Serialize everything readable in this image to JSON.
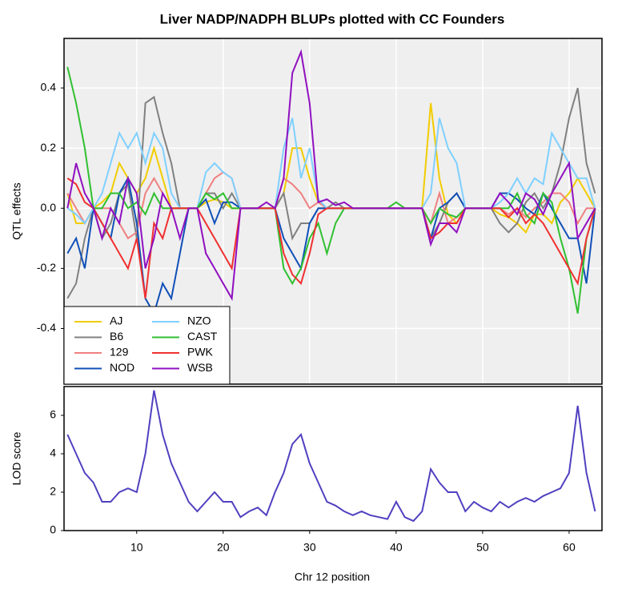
{
  "chart_data": [
    {
      "type": "line",
      "title": "Liver NADP/NADPH BLUPs plotted with CC Founders",
      "ylabel": "QTL effects",
      "x": [
        2,
        3,
        4,
        5,
        6,
        7,
        8,
        9,
        10,
        11,
        12,
        13,
        14,
        15,
        16,
        17,
        18,
        19,
        20,
        21,
        22,
        23,
        24,
        25,
        26,
        27,
        28,
        29,
        30,
        31,
        32,
        33,
        34,
        35,
        36,
        37,
        38,
        39,
        40,
        41,
        42,
        43,
        44,
        45,
        46,
        47,
        48,
        49,
        50,
        51,
        52,
        53,
        54,
        55,
        56,
        57,
        58,
        59,
        60,
        61,
        62,
        63
      ],
      "xlim": [
        1.6,
        63.8
      ],
      "ylim": [
        -0.585,
        0.565
      ],
      "yticks": [
        0.4,
        0.2,
        {
          "value": 0,
          "label": "0.0"
        },
        -0.2,
        -0.4
      ],
      "grid": true,
      "legend": "bottom-left",
      "series": [
        {
          "name": "AJ",
          "color": "#f2cc00",
          "values": [
            0.05,
            -0.05,
            -0.05,
            0,
            0.02,
            0.05,
            0.15,
            0.1,
            0.05,
            0.1,
            0.2,
            0.1,
            0,
            0,
            0,
            0,
            0.02,
            0.03,
            0.02,
            0,
            0,
            0,
            0,
            0,
            0,
            0.05,
            0.2,
            0.2,
            0.1,
            0.02,
            0,
            0,
            0,
            0,
            0,
            0,
            0,
            0,
            0,
            0,
            0,
            0,
            0.35,
            0.1,
            -0.02,
            -0.05,
            0,
            0,
            0,
            0,
            -0.02,
            -0.03,
            -0.05,
            -0.08,
            -0.02,
            -0.02,
            -0.05,
            0.02,
            0.05,
            0.1,
            0.05,
            0
          ]
        },
        {
          "name": "B6",
          "color": "#808080",
          "values": [
            -0.3,
            -0.25,
            -0.1,
            0,
            -0.1,
            -0.05,
            0.05,
            0.08,
            -0.1,
            0.35,
            0.37,
            0.25,
            0.15,
            0,
            0,
            0,
            0.05,
            0.05,
            0,
            0.05,
            0,
            0,
            0,
            0,
            0,
            0.05,
            -0.1,
            -0.05,
            -0.05,
            0,
            0,
            0.02,
            0,
            0,
            0,
            0,
            0,
            0,
            0,
            0,
            0,
            0,
            -0.1,
            -0.05,
            0.02,
            0.05,
            0,
            0,
            0,
            0,
            -0.05,
            -0.08,
            -0.05,
            0.02,
            0.05,
            0,
            0.05,
            0.15,
            0.3,
            0.4,
            0.15,
            0.05
          ]
        },
        {
          "name": "129",
          "color": "#f08080",
          "values": [
            0.05,
            0,
            -0.05,
            0,
            0,
            0,
            -0.05,
            -0.1,
            -0.08,
            0.05,
            0.1,
            0.05,
            0,
            0,
            0,
            0,
            0.05,
            0.1,
            0.12,
            0.1,
            0,
            0,
            0,
            0,
            0,
            0.1,
            0.08,
            0.05,
            0,
            0.02,
            0,
            0,
            0,
            0,
            0,
            0,
            0,
            0,
            0,
            0,
            0,
            0,
            -0.05,
            0.05,
            -0.05,
            -0.03,
            0,
            0,
            0,
            0,
            0,
            -0.02,
            0,
            -0.03,
            0,
            0.02,
            0.05,
            0.05,
            0.02,
            -0.05,
            0,
            0
          ]
        },
        {
          "name": "NOD",
          "color": "#1050b8",
          "values": [
            -0.15,
            -0.1,
            -0.2,
            0,
            -0.05,
            -0.1,
            0.05,
            0.1,
            -0.05,
            -0.3,
            -0.35,
            -0.25,
            -0.3,
            -0.15,
            0,
            0,
            0.03,
            -0.05,
            0.02,
            0.02,
            0,
            0,
            0,
            0,
            0,
            -0.1,
            -0.15,
            -0.2,
            -0.05,
            0,
            0,
            0,
            0,
            0,
            0,
            0,
            0,
            0,
            0,
            0,
            0,
            0,
            -0.1,
            0,
            0.02,
            0.05,
            0,
            0,
            0,
            0,
            0.05,
            0.05,
            0.03,
            0,
            -0.02,
            0.05,
            0,
            -0.05,
            -0.1,
            -0.1,
            -0.25,
            0
          ]
        },
        {
          "name": "NZO",
          "color": "#7fd0ff",
          "values": [
            0,
            -0.02,
            -0.05,
            0,
            0.05,
            0.15,
            0.25,
            0.2,
            0.25,
            0.15,
            0.25,
            0.2,
            0.05,
            0,
            0,
            0,
            0.12,
            0.15,
            0.12,
            0.1,
            0,
            0,
            0,
            0,
            0,
            0.2,
            0.3,
            0.1,
            0.2,
            0.03,
            0,
            0,
            0,
            0,
            0,
            0,
            0,
            0,
            0,
            0,
            0,
            0,
            0.05,
            0.3,
            0.2,
            0.15,
            0,
            0,
            0,
            0,
            0.02,
            0.05,
            0.1,
            0.05,
            0.1,
            0.08,
            0.25,
            0.2,
            0.15,
            0.1,
            0.1,
            0
          ]
        },
        {
          "name": "CAST",
          "color": "#30c030",
          "values": [
            0.47,
            0.35,
            0.2,
            0,
            0,
            0.05,
            0.05,
            0,
            0.02,
            -0.02,
            0.05,
            0,
            0,
            0,
            0,
            0,
            0.05,
            0.03,
            0.05,
            0,
            0,
            0,
            0,
            0,
            0,
            -0.2,
            -0.25,
            -0.2,
            -0.1,
            -0.05,
            -0.15,
            -0.05,
            0,
            0,
            0,
            0,
            0,
            0,
            0.02,
            0,
            0,
            0,
            -0.05,
            0,
            -0.02,
            -0.03,
            0,
            0,
            0,
            0,
            0,
            0,
            0.05,
            -0.02,
            -0.05,
            0.05,
            0.02,
            -0.1,
            -0.2,
            -0.35,
            -0.1,
            0
          ]
        },
        {
          "name": "PWK",
          "color": "#f03030",
          "values": [
            0.1,
            0.08,
            0.02,
            0,
            -0.05,
            -0.1,
            -0.15,
            -0.2,
            -0.1,
            -0.3,
            -0.05,
            -0.1,
            0,
            0,
            0,
            0,
            -0.05,
            -0.1,
            -0.15,
            -0.2,
            0,
            0,
            0,
            0,
            0,
            -0.15,
            -0.22,
            -0.25,
            -0.15,
            -0.02,
            0,
            0,
            0,
            0,
            0,
            0,
            0,
            0,
            0,
            0,
            0,
            0,
            -0.1,
            -0.08,
            -0.05,
            -0.05,
            0,
            0,
            0,
            0,
            0,
            -0.03,
            0,
            -0.05,
            -0.02,
            -0.05,
            -0.1,
            -0.15,
            -0.2,
            -0.25,
            -0.1,
            0
          ]
        },
        {
          "name": "WSB",
          "color": "#9010c0",
          "values": [
            0,
            0.15,
            0.05,
            0,
            -0.1,
            0,
            -0.05,
            0.1,
            0.05,
            -0.2,
            -0.1,
            0.05,
            0,
            -0.1,
            0,
            0,
            -0.15,
            -0.2,
            -0.25,
            -0.3,
            0,
            0,
            0,
            0.02,
            0,
            0.1,
            0.45,
            0.52,
            0.35,
            0.02,
            0.03,
            0.01,
            0.02,
            0,
            0,
            0,
            0,
            0,
            0,
            0,
            0,
            0,
            -0.12,
            -0.05,
            -0.05,
            -0.08,
            0,
            0,
            0,
            0,
            0.05,
            0.02,
            -0.02,
            0.05,
            0.03,
            -0.02,
            0.05,
            0.1,
            0.15,
            -0.1,
            -0.05,
            0
          ]
        }
      ]
    },
    {
      "type": "line",
      "ylabel": "LOD score",
      "xlabel": "Chr 12 position",
      "x": [
        2,
        3,
        4,
        5,
        6,
        7,
        8,
        9,
        10,
        11,
        12,
        13,
        14,
        15,
        16,
        17,
        18,
        19,
        20,
        21,
        22,
        23,
        24,
        25,
        26,
        27,
        28,
        29,
        30,
        31,
        32,
        33,
        34,
        35,
        36,
        37,
        38,
        39,
        40,
        41,
        42,
        43,
        44,
        45,
        46,
        47,
        48,
        49,
        50,
        51,
        52,
        53,
        54,
        55,
        56,
        57,
        58,
        59,
        60,
        61,
        62,
        63
      ],
      "xlim": [
        1.6,
        63.8
      ],
      "xticks": [
        10,
        20,
        30,
        40,
        50,
        60
      ],
      "ylim": [
        0,
        7.5
      ],
      "yticks": [
        0,
        2,
        4,
        6
      ],
      "color": "#5040c0",
      "values": [
        5,
        4,
        3,
        2.5,
        1.5,
        1.5,
        2,
        2.2,
        2,
        4,
        7.3,
        5,
        3.5,
        2.5,
        1.5,
        1,
        1.5,
        2,
        1.5,
        1.5,
        0.7,
        1,
        1.2,
        0.8,
        2,
        3,
        4.5,
        5,
        3.5,
        2.5,
        1.5,
        1.3,
        1,
        0.8,
        1,
        0.8,
        0.7,
        0.6,
        1.5,
        0.7,
        0.5,
        1,
        3.2,
        2.5,
        2,
        2,
        1,
        1.5,
        1.2,
        1,
        1.5,
        1.2,
        1.5,
        1.7,
        1.5,
        1.8,
        2,
        2.2,
        3,
        6.5,
        3,
        1
      ]
    }
  ]
}
